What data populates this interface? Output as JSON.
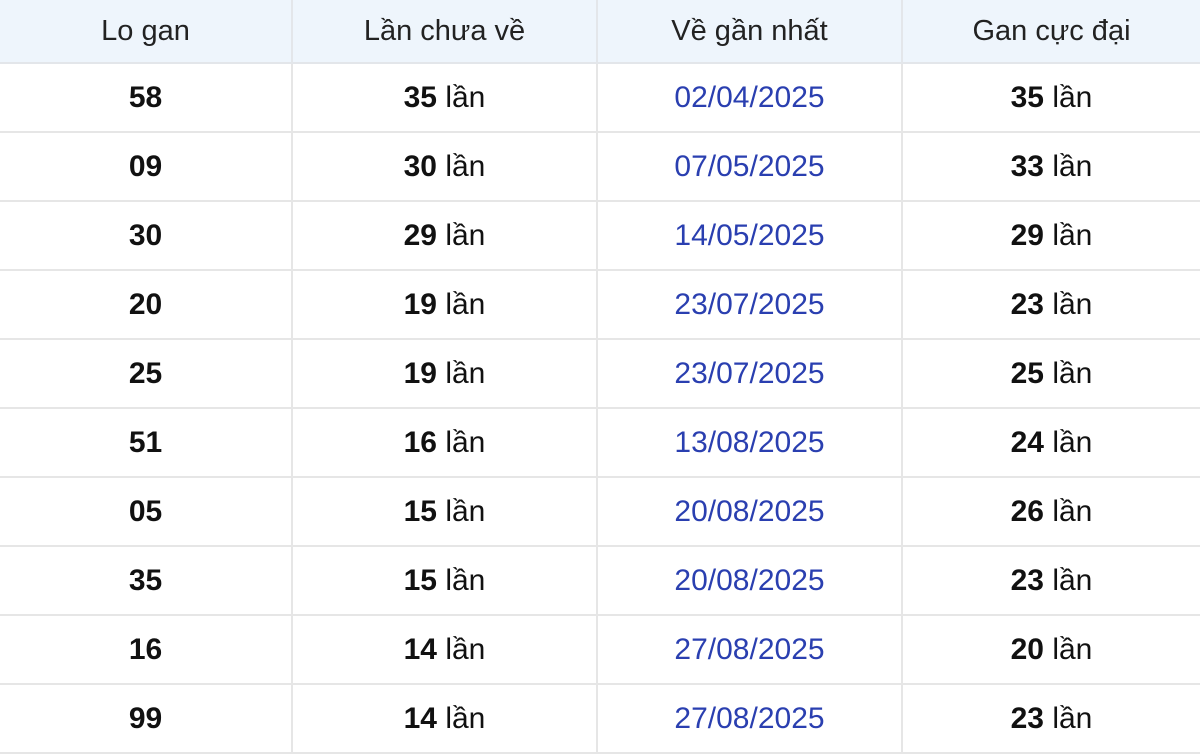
{
  "headers": [
    "Lo gan",
    "Lần chưa về",
    "Về gần nhất",
    "Gan cực đại"
  ],
  "unit": "lần",
  "colors": {
    "header_bg": "#eef5fc",
    "date": "#2a3fb0",
    "border": "#e6e6e6"
  },
  "rows": [
    {
      "lo": "58",
      "chua_ve": "35",
      "gan_nhat": "02/04/2025",
      "cuc_dai": "35"
    },
    {
      "lo": "09",
      "chua_ve": "30",
      "gan_nhat": "07/05/2025",
      "cuc_dai": "33"
    },
    {
      "lo": "30",
      "chua_ve": "29",
      "gan_nhat": "14/05/2025",
      "cuc_dai": "29"
    },
    {
      "lo": "20",
      "chua_ve": "19",
      "gan_nhat": "23/07/2025",
      "cuc_dai": "23"
    },
    {
      "lo": "25",
      "chua_ve": "19",
      "gan_nhat": "23/07/2025",
      "cuc_dai": "25"
    },
    {
      "lo": "51",
      "chua_ve": "16",
      "gan_nhat": "13/08/2025",
      "cuc_dai": "24"
    },
    {
      "lo": "05",
      "chua_ve": "15",
      "gan_nhat": "20/08/2025",
      "cuc_dai": "26"
    },
    {
      "lo": "35",
      "chua_ve": "15",
      "gan_nhat": "20/08/2025",
      "cuc_dai": "23"
    },
    {
      "lo": "16",
      "chua_ve": "14",
      "gan_nhat": "27/08/2025",
      "cuc_dai": "20"
    },
    {
      "lo": "99",
      "chua_ve": "14",
      "gan_nhat": "27/08/2025",
      "cuc_dai": "23"
    }
  ]
}
